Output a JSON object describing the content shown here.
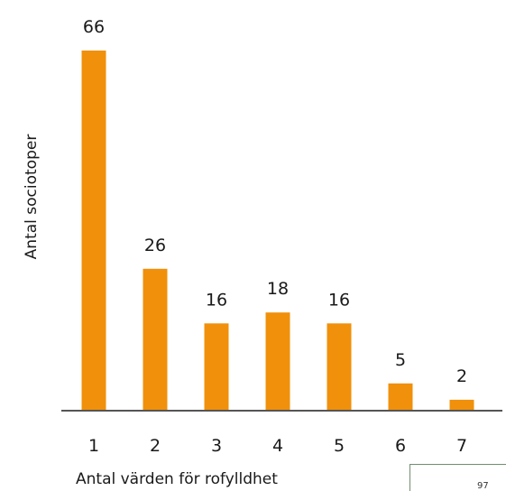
{
  "chart_data": {
    "type": "bar",
    "categories": [
      "1",
      "2",
      "3",
      "4",
      "5",
      "6",
      "7"
    ],
    "values": [
      66,
      26,
      16,
      18,
      16,
      5,
      2
    ],
    "xlabel": "Antal värden för rofylldhet",
    "ylabel": "Antal sociotoper",
    "ylim": [
      0,
      66
    ],
    "grid": false,
    "colors": {
      "bar": "#f0900b",
      "axis": "#555555"
    }
  },
  "corner_box": {
    "text": "97 "
  }
}
